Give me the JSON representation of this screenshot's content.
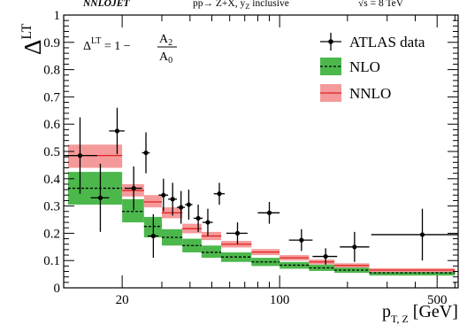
{
  "colors": {
    "nlo_band": "#4cb84c",
    "nlo_line": "#000000",
    "nnlo_band": "#f59a9a",
    "nnlo_line": "#e02020",
    "data": "#000000"
  },
  "chart_data": {
    "type": "scatter",
    "header": {
      "left": "NNLOJET",
      "process": "pp→ Z+X,  y",
      "process_sub": "Z",
      "process_suffix": " inclusive",
      "energy": "√s = 8 TeV"
    },
    "ylabel": "Δ",
    "ylabel_sup": "LT",
    "xlabel": "p",
    "xlabel_sub": "T, Z",
    "xlabel_unit": " [GeV]",
    "formula": {
      "lhs": "Δ",
      "lhs_sup": "LT",
      "eq": " = 1 −",
      "num": "A",
      "num_sub": "2",
      "den": "A",
      "den_sub": "0"
    },
    "x_scale": "log",
    "xlim": [
      11,
      620
    ],
    "ylim": [
      0,
      1
    ],
    "x_ticks": [
      20,
      100,
      500
    ],
    "x_tick_labels": [
      "20",
      "100",
      "500"
    ],
    "y_ticks": [
      0,
      0.1,
      0.2,
      0.3,
      0.4,
      0.5,
      0.6,
      0.7,
      0.8,
      0.9,
      1
    ],
    "y_tick_labels": [
      "0",
      "0.1",
      "0.2",
      "0.3",
      "0.4",
      "0.5",
      "0.6",
      "0.7",
      "0.8",
      "0.9",
      "1"
    ],
    "legend": {
      "position": "top-right",
      "items": [
        "ATLAS data",
        "NLO",
        "NNLO"
      ]
    },
    "series": [
      {
        "name": "ATLAS data",
        "kind": "points",
        "points": [
          {
            "x": 13.0,
            "xlo": 11.0,
            "xhi": 15.5,
            "y": 0.485,
            "ylo": 0.345,
            "yhi": 0.625
          },
          {
            "x": 16.0,
            "xlo": 14.5,
            "xhi": 17.5,
            "y": 0.33,
            "ylo": 0.205,
            "yhi": 0.455
          },
          {
            "x": 19.0,
            "xlo": 17.5,
            "xhi": 20.5,
            "y": 0.575,
            "ylo": 0.49,
            "yhi": 0.66
          },
          {
            "x": 22.5,
            "xlo": 20.5,
            "xhi": 24.5,
            "y": 0.365,
            "ylo": 0.285,
            "yhi": 0.445
          },
          {
            "x": 25.5,
            "xlo": 24.5,
            "xhi": 26.5,
            "y": 0.495,
            "ylo": 0.42,
            "yhi": 0.57
          },
          {
            "x": 27.5,
            "xlo": 26.0,
            "xhi": 29.0,
            "y": 0.19,
            "ylo": 0.11,
            "yhi": 0.27
          },
          {
            "x": 30.5,
            "xlo": 29.0,
            "xhi": 32.0,
            "y": 0.34,
            "ylo": 0.28,
            "yhi": 0.4
          },
          {
            "x": 33.5,
            "xlo": 32.0,
            "xhi": 35.0,
            "y": 0.325,
            "ylo": 0.265,
            "yhi": 0.385
          },
          {
            "x": 36.5,
            "xlo": 35.0,
            "xhi": 38.0,
            "y": 0.295,
            "ylo": 0.235,
            "yhi": 0.355
          },
          {
            "x": 39.5,
            "xlo": 38.0,
            "xhi": 41.0,
            "y": 0.305,
            "ylo": 0.25,
            "yhi": 0.36
          },
          {
            "x": 43.5,
            "xlo": 41.5,
            "xhi": 45.5,
            "y": 0.255,
            "ylo": 0.205,
            "yhi": 0.305
          },
          {
            "x": 48.0,
            "xlo": 45.5,
            "xhi": 50.5,
            "y": 0.24,
            "ylo": 0.19,
            "yhi": 0.29
          },
          {
            "x": 54.0,
            "xlo": 51.0,
            "xhi": 57.0,
            "y": 0.345,
            "ylo": 0.305,
            "yhi": 0.385
          },
          {
            "x": 65.0,
            "xlo": 58.0,
            "xhi": 72.0,
            "y": 0.2,
            "ylo": 0.16,
            "yhi": 0.24
          },
          {
            "x": 90.0,
            "xlo": 80.0,
            "xhi": 100.0,
            "y": 0.275,
            "ylo": 0.235,
            "yhi": 0.315
          },
          {
            "x": 125.0,
            "xlo": 110.0,
            "xhi": 140.0,
            "y": 0.175,
            "ylo": 0.135,
            "yhi": 0.215
          },
          {
            "x": 160.0,
            "xlo": 140.0,
            "xhi": 180.0,
            "y": 0.115,
            "ylo": 0.085,
            "yhi": 0.145
          },
          {
            "x": 215.0,
            "xlo": 185.0,
            "xhi": 250.0,
            "y": 0.15,
            "ylo": 0.095,
            "yhi": 0.205
          },
          {
            "x": 430.0,
            "xlo": 255.0,
            "xhi": 620.0,
            "y": 0.195,
            "ylo": 0.1,
            "yhi": 0.29
          }
        ]
      },
      {
        "name": "NLO",
        "kind": "band",
        "bins": [
          {
            "xlo": 11.5,
            "xhi": 20.0,
            "low": 0.305,
            "high": 0.425,
            "central": 0.365
          },
          {
            "xlo": 20.0,
            "xhi": 25.0,
            "low": 0.24,
            "high": 0.325,
            "central": 0.28
          },
          {
            "xlo": 25.0,
            "xhi": 30.0,
            "low": 0.185,
            "high": 0.26,
            "central": 0.225
          },
          {
            "xlo": 30.0,
            "xhi": 37.0,
            "low": 0.155,
            "high": 0.215,
            "central": 0.185
          },
          {
            "xlo": 37.0,
            "xhi": 45.0,
            "low": 0.13,
            "high": 0.18,
            "central": 0.155
          },
          {
            "xlo": 45.0,
            "xhi": 55.0,
            "low": 0.11,
            "high": 0.155,
            "central": 0.13
          },
          {
            "xlo": 55.0,
            "xhi": 75.0,
            "low": 0.095,
            "high": 0.13,
            "central": 0.113
          },
          {
            "xlo": 75.0,
            "xhi": 100.0,
            "low": 0.08,
            "high": 0.11,
            "central": 0.095
          },
          {
            "xlo": 100.0,
            "xhi": 135.0,
            "low": 0.07,
            "high": 0.095,
            "central": 0.083
          },
          {
            "xlo": 135.0,
            "xhi": 175.0,
            "low": 0.062,
            "high": 0.085,
            "central": 0.073
          },
          {
            "xlo": 175.0,
            "xhi": 250.0,
            "low": 0.055,
            "high": 0.076,
            "central": 0.065
          },
          {
            "xlo": 250.0,
            "xhi": 600.0,
            "low": 0.045,
            "high": 0.064,
            "central": 0.055
          }
        ]
      },
      {
        "name": "NNLO",
        "kind": "band",
        "bins": [
          {
            "xlo": 11.5,
            "xhi": 20.0,
            "low": 0.44,
            "high": 0.525,
            "central": 0.485
          },
          {
            "xlo": 20.0,
            "xhi": 25.0,
            "low": 0.335,
            "high": 0.38,
            "central": 0.357
          },
          {
            "xlo": 25.0,
            "xhi": 30.0,
            "low": 0.295,
            "high": 0.34,
            "central": 0.315
          },
          {
            "xlo": 30.0,
            "xhi": 37.0,
            "low": 0.255,
            "high": 0.295,
            "central": 0.275
          },
          {
            "xlo": 37.0,
            "xhi": 45.0,
            "low": 0.2,
            "high": 0.235,
            "central": 0.217
          },
          {
            "xlo": 45.0,
            "xhi": 55.0,
            "low": 0.175,
            "high": 0.205,
            "central": 0.19
          },
          {
            "xlo": 55.0,
            "xhi": 75.0,
            "low": 0.148,
            "high": 0.172,
            "central": 0.16
          },
          {
            "xlo": 75.0,
            "xhi": 100.0,
            "low": 0.12,
            "high": 0.142,
            "central": 0.131
          },
          {
            "xlo": 100.0,
            "xhi": 135.0,
            "low": 0.1,
            "high": 0.12,
            "central": 0.11
          },
          {
            "xlo": 135.0,
            "xhi": 175.0,
            "low": 0.086,
            "high": 0.104,
            "central": 0.095
          },
          {
            "xlo": 175.0,
            "xhi": 250.0,
            "low": 0.074,
            "high": 0.09,
            "central": 0.082
          },
          {
            "xlo": 250.0,
            "xhi": 600.0,
            "low": 0.058,
            "high": 0.072,
            "central": 0.065
          }
        ]
      }
    ]
  }
}
